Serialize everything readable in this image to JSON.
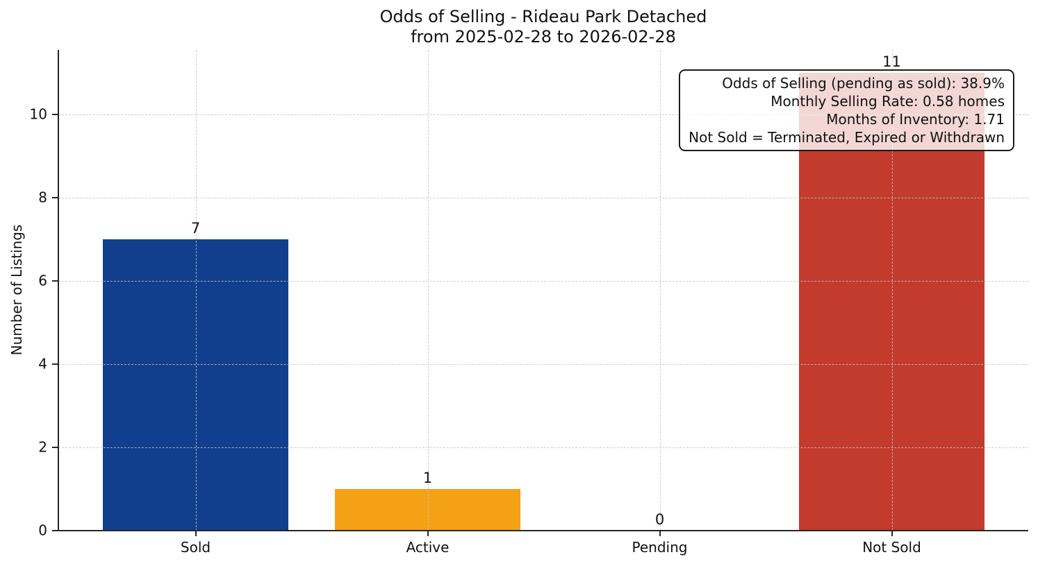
{
  "figure": {
    "title_line1": "Odds of Selling - Rideau Park Detached",
    "title_line2": "from 2025-02-28 to 2026-02-28"
  },
  "chart_data": {
    "type": "bar",
    "title": "Odds of Selling - Rideau Park Detached",
    "subtitle": "from 2025-02-28 to 2026-02-28",
    "categories": [
      "Sold",
      "Active",
      "Pending",
      "Not Sold"
    ],
    "values": [
      7,
      1,
      0,
      11
    ],
    "value_labels": [
      "7",
      "1",
      "0",
      "11"
    ],
    "bar_colors": [
      "#113f8e",
      "#f5a115",
      "#777777",
      "#c23b2c"
    ],
    "xlabel": "",
    "ylabel": "Number of Listings",
    "ylim": [
      0,
      11.55
    ],
    "yticks": [
      "0",
      "2",
      "4",
      "6",
      "8",
      "10"
    ],
    "grid": "dashed, horizontal and vertical, light gray, drawn over bars",
    "legend": "none",
    "annotation": {
      "position": "top-right",
      "lines": [
        "Odds of Selling (pending as sold): 38.9%",
        "Monthly Selling Rate: 0.58 homes",
        "Months of Inventory: 1.71",
        "Not Sold = Terminated, Expired or Withdrawn"
      ],
      "stats": {
        "odds_of_selling_pending_as_sold_pct": 38.9,
        "monthly_selling_rate_homes": 0.58,
        "months_of_inventory": 1.71,
        "not_sold_definition": "Terminated, Expired or Withdrawn"
      }
    }
  }
}
